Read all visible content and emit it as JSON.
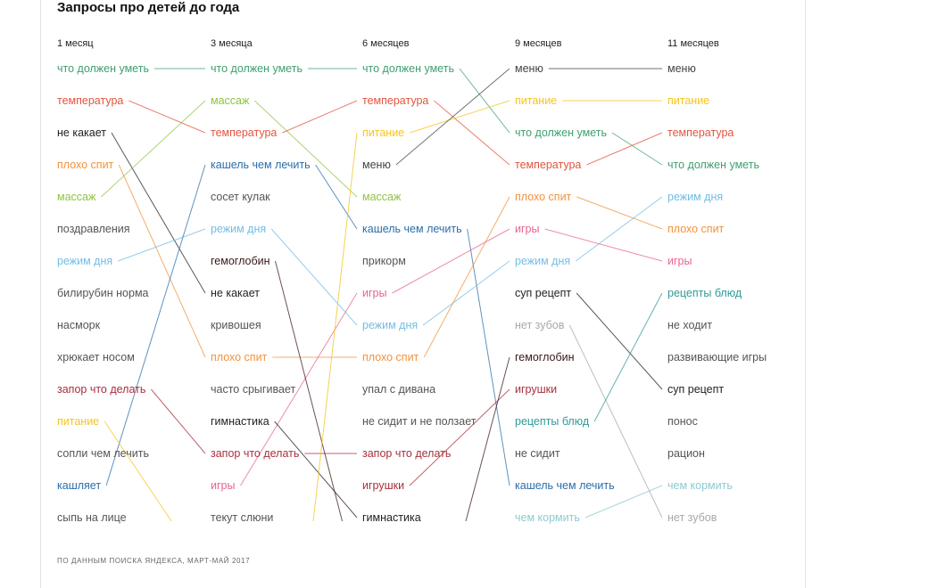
{
  "title": "Запросы про детей до года",
  "footer": "ПО ДАННЫМ ПОИСКА ЯНДЕКСА, МАРТ-МАЙ 2017",
  "colors": {
    "green": "#3f9f6e",
    "red": "#e2553f",
    "black": "#222222",
    "orange": "#f2923c",
    "lightgreen": "#8fc444",
    "gray": "#555555",
    "lightblue": "#72bde3",
    "darkred": "#a8303c",
    "yellow": "#f5c41c",
    "blue": "#2b6ea8",
    "pink": "#e8648c",
    "teal": "#2f9a96",
    "lightteal": "#8ccad2",
    "lightgray": "#a8a8a8",
    "dark": "#444444",
    "maroon": "#3a1818"
  },
  "columns": [
    {
      "label": "1 месяц",
      "items": [
        {
          "text": "что должен уметь",
          "color": "green"
        },
        {
          "text": "температура",
          "color": "red"
        },
        {
          "text": "не какает",
          "color": "black"
        },
        {
          "text": "плохо спит",
          "color": "orange"
        },
        {
          "text": "массаж",
          "color": "lightgreen"
        },
        {
          "text": "поздравления",
          "color": "gray"
        },
        {
          "text": "режим дня",
          "color": "lightblue"
        },
        {
          "text": "билирубин норма",
          "color": "gray"
        },
        {
          "text": "насморк",
          "color": "gray"
        },
        {
          "text": "хрюкает носом",
          "color": "gray"
        },
        {
          "text": "запор что делать",
          "color": "darkred"
        },
        {
          "text": "питание",
          "color": "yellow"
        },
        {
          "text": "сопли чем лечить",
          "color": "gray"
        },
        {
          "text": "кашляет",
          "color": "blue"
        },
        {
          "text": "сыпь на лице",
          "color": "gray"
        }
      ]
    },
    {
      "label": "3 месяца",
      "items": [
        {
          "text": "что должен уметь",
          "color": "green"
        },
        {
          "text": "массаж",
          "color": "lightgreen"
        },
        {
          "text": "температура",
          "color": "red"
        },
        {
          "text": "кашель чем лечить",
          "color": "blue"
        },
        {
          "text": "сосет кулак",
          "color": "gray"
        },
        {
          "text": "режим дня",
          "color": "lightblue"
        },
        {
          "text": "гемоглобин",
          "color": "maroon"
        },
        {
          "text": "не какает",
          "color": "black"
        },
        {
          "text": "кривошея",
          "color": "gray"
        },
        {
          "text": "плохо спит",
          "color": "orange"
        },
        {
          "text": "часто срыгивает",
          "color": "gray"
        },
        {
          "text": "гимнастика",
          "color": "black"
        },
        {
          "text": "запор что делать",
          "color": "darkred"
        },
        {
          "text": "игры",
          "color": "pink"
        },
        {
          "text": "текут слюни",
          "color": "gray"
        }
      ]
    },
    {
      "label": "6 месяцев",
      "items": [
        {
          "text": "что должен уметь",
          "color": "green"
        },
        {
          "text": "температура",
          "color": "red"
        },
        {
          "text": "питание",
          "color": "yellow"
        },
        {
          "text": "меню",
          "color": "dark"
        },
        {
          "text": "массаж",
          "color": "lightgreen"
        },
        {
          "text": "кашель чем лечить",
          "color": "blue"
        },
        {
          "text": "прикорм",
          "color": "gray"
        },
        {
          "text": "игры",
          "color": "pink"
        },
        {
          "text": "режим дня",
          "color": "lightblue"
        },
        {
          "text": "плохо спит",
          "color": "orange"
        },
        {
          "text": "упал с дивана",
          "color": "gray"
        },
        {
          "text": "не сидит и не ползает",
          "color": "gray"
        },
        {
          "text": "запор что делать",
          "color": "darkred"
        },
        {
          "text": "игрушки",
          "color": "darkred"
        },
        {
          "text": "гимнастика",
          "color": "black"
        }
      ]
    },
    {
      "label": "9 месяцев",
      "items": [
        {
          "text": "меню",
          "color": "dark"
        },
        {
          "text": "питание",
          "color": "yellow"
        },
        {
          "text": "что должен уметь",
          "color": "green"
        },
        {
          "text": "температура",
          "color": "red"
        },
        {
          "text": "плохо спит",
          "color": "orange"
        },
        {
          "text": "игры",
          "color": "pink"
        },
        {
          "text": "режим дня",
          "color": "lightblue"
        },
        {
          "text": "суп рецепт",
          "color": "black"
        },
        {
          "text": "нет зубов",
          "color": "lightgray"
        },
        {
          "text": "гемоглобин",
          "color": "maroon"
        },
        {
          "text": "игрушки",
          "color": "darkred"
        },
        {
          "text": "рецепты блюд",
          "color": "teal"
        },
        {
          "text": "не сидит",
          "color": "gray"
        },
        {
          "text": "кашель чем лечить",
          "color": "blue"
        },
        {
          "text": "чем кормить",
          "color": "lightteal"
        }
      ]
    },
    {
      "label": "11 месяцев",
      "items": [
        {
          "text": "меню",
          "color": "dark"
        },
        {
          "text": "питание",
          "color": "yellow"
        },
        {
          "text": "температура",
          "color": "red"
        },
        {
          "text": "что должен уметь",
          "color": "green"
        },
        {
          "text": "режим дня",
          "color": "lightblue"
        },
        {
          "text": "плохо спит",
          "color": "orange"
        },
        {
          "text": "игры",
          "color": "pink"
        },
        {
          "text": "рецепты блюд",
          "color": "teal"
        },
        {
          "text": "не ходит",
          "color": "gray"
        },
        {
          "text": "развивающие игры",
          "color": "gray"
        },
        {
          "text": "суп рецепт",
          "color": "black"
        },
        {
          "text": "понос",
          "color": "gray"
        },
        {
          "text": "рацион",
          "color": "gray"
        },
        {
          "text": "чем кормить",
          "color": "lightteal"
        },
        {
          "text": "нет зубов",
          "color": "lightgray"
        }
      ]
    }
  ],
  "links": [
    {
      "col": 0,
      "from": 0,
      "to": 0
    },
    {
      "col": 0,
      "from": 1,
      "to": 2
    },
    {
      "col": 0,
      "from": 2,
      "to": 7
    },
    {
      "col": 0,
      "from": 3,
      "to": 9
    },
    {
      "col": 0,
      "from": 4,
      "to": 1
    },
    {
      "col": 0,
      "from": 6,
      "to": 5
    },
    {
      "col": 0,
      "from": 10,
      "to": 12
    },
    {
      "col": 0,
      "from": 13,
      "to": 3
    },
    {
      "col": 0,
      "from": 11,
      "to": "off"
    },
    {
      "col": 1,
      "from": 0,
      "to": 0
    },
    {
      "col": 1,
      "from": 1,
      "to": 4
    },
    {
      "col": 1,
      "from": 2,
      "to": 1
    },
    {
      "col": 1,
      "from": 3,
      "to": 5
    },
    {
      "col": 1,
      "from": 5,
      "to": 8
    },
    {
      "col": 1,
      "from": 9,
      "to": 9
    },
    {
      "col": 1,
      "from": 12,
      "to": 12
    },
    {
      "col": 1,
      "from": 13,
      "to": 7
    },
    {
      "col": 1,
      "from": 11,
      "to": 14
    },
    {
      "col": 1,
      "from": 6,
      "to": "off"
    },
    {
      "col": 1,
      "from": "off",
      "to": 2
    },
    {
      "col": 2,
      "from": 0,
      "to": 2
    },
    {
      "col": 2,
      "from": 1,
      "to": 3
    },
    {
      "col": 2,
      "from": 2,
      "to": 1
    },
    {
      "col": 2,
      "from": 3,
      "to": 0
    },
    {
      "col": 2,
      "from": 5,
      "to": 13
    },
    {
      "col": 2,
      "from": 7,
      "to": 5
    },
    {
      "col": 2,
      "from": 8,
      "to": 6
    },
    {
      "col": 2,
      "from": 9,
      "to": 4
    },
    {
      "col": 2,
      "from": 13,
      "to": 10
    },
    {
      "col": 2,
      "from": "off",
      "to": 9
    },
    {
      "col": 3,
      "from": 0,
      "to": 0
    },
    {
      "col": 3,
      "from": 1,
      "to": 1
    },
    {
      "col": 3,
      "from": 2,
      "to": 3
    },
    {
      "col": 3,
      "from": 3,
      "to": 2
    },
    {
      "col": 3,
      "from": 4,
      "to": 5
    },
    {
      "col": 3,
      "from": 5,
      "to": 6
    },
    {
      "col": 3,
      "from": 6,
      "to": 4
    },
    {
      "col": 3,
      "from": 7,
      "to": 10
    },
    {
      "col": 3,
      "from": 8,
      "to": 14
    },
    {
      "col": 3,
      "from": 11,
      "to": 7
    },
    {
      "col": 3,
      "from": 14,
      "to": 13
    }
  ]
}
